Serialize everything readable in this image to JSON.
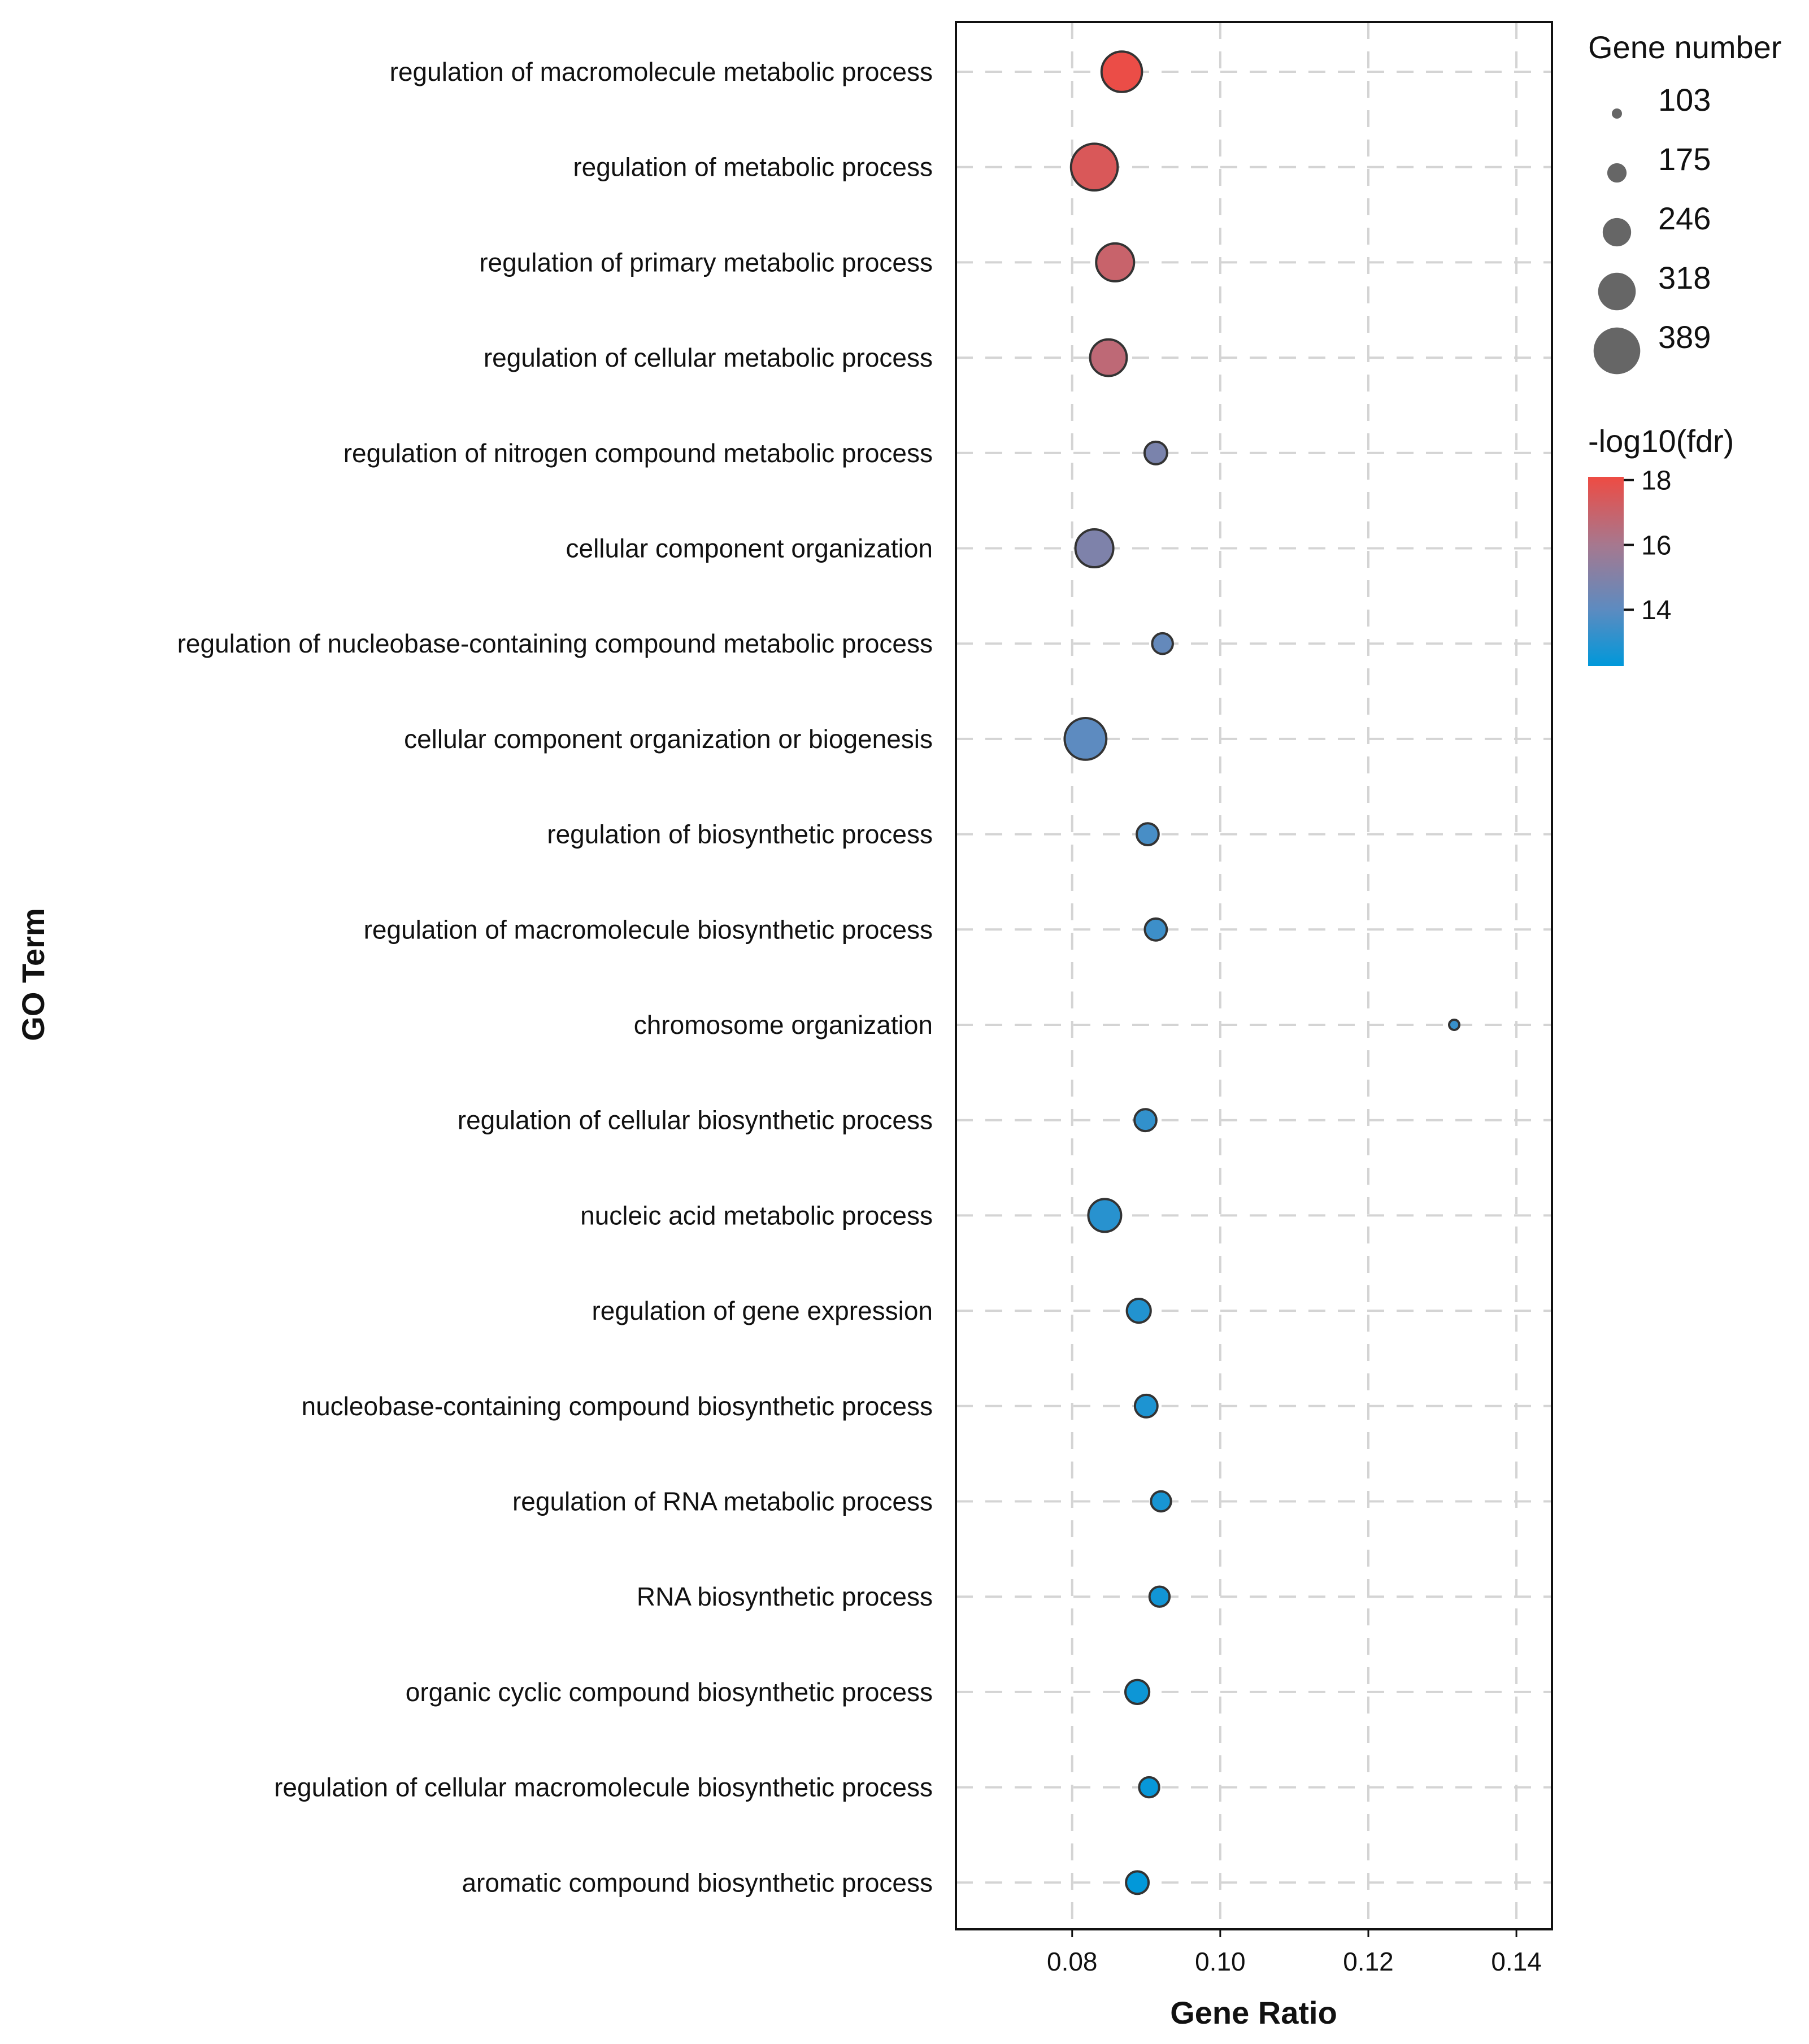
{
  "chart_data": {
    "type": "scatter",
    "title": "",
    "xlabel": "Gene Ratio",
    "ylabel": "GO Term",
    "xlim": [
      0.0643,
      0.1448
    ],
    "xticks": [
      0.08,
      0.1,
      0.12,
      0.14
    ],
    "xtick_labels": [
      "0.08",
      "0.10",
      "0.12",
      "0.14"
    ],
    "grid": true,
    "categories": [
      "regulation of macromolecule metabolic process",
      "regulation of metabolic process",
      "regulation of primary metabolic process",
      "regulation of cellular metabolic process",
      "regulation of nitrogen compound metabolic process",
      "cellular component organization",
      "regulation of nucleobase-containing compound metabolic process",
      "cellular component organization or biogenesis",
      "regulation of biosynthetic process",
      "regulation of macromolecule biosynthetic process",
      "chromosome organization",
      "regulation of cellular biosynthetic process",
      "nucleic acid metabolic process",
      "regulation of gene expression",
      "nucleobase-containing compound biosynthetic process",
      "regulation of RNA metabolic process",
      "RNA biosynthetic process",
      "organic cyclic compound biosynthetic process",
      "regulation of cellular macromolecule biosynthetic process",
      "aromatic compound biosynthetic process"
    ],
    "gene_ratio": [
      0.0867,
      0.083,
      0.0858,
      0.0849,
      0.0913,
      0.083,
      0.0922,
      0.0818,
      0.0902,
      0.0913,
      0.1316,
      0.0899,
      0.0844,
      0.089,
      0.09,
      0.092,
      0.0918,
      0.0888,
      0.0904,
      0.0888
    ],
    "gene_number": [
      340,
      389,
      320,
      310,
      200,
      320,
      185,
      350,
      195,
      195,
      103,
      195,
      280,
      210,
      200,
      180,
      180,
      210,
      180,
      200
    ],
    "neg_log10_fdr": [
      18.0,
      17.5,
      17.0,
      16.7,
      14.8,
      14.9,
      14.2,
      14.0,
      13.6,
      13.4,
      13.3,
      13.2,
      13.0,
      12.9,
      12.8,
      12.7,
      12.6,
      12.5,
      12.4,
      12.3
    ],
    "size_legend": {
      "title": "Gene number",
      "values": [
        103,
        175,
        246,
        318,
        389
      ],
      "labels": [
        "103",
        "175",
        "246",
        "318",
        "389"
      ]
    },
    "color_legend": {
      "title": "-log10(fdr)",
      "range": [
        12.26,
        18.1
      ],
      "ticks": [
        18,
        16,
        14
      ],
      "tick_labels": [
        "18",
        "16",
        "14"
      ],
      "colors": [
        "#0098DA",
        "#5D8BC0",
        "#A6788F",
        "#EE4B43"
      ]
    },
    "legend_placement": "right"
  }
}
